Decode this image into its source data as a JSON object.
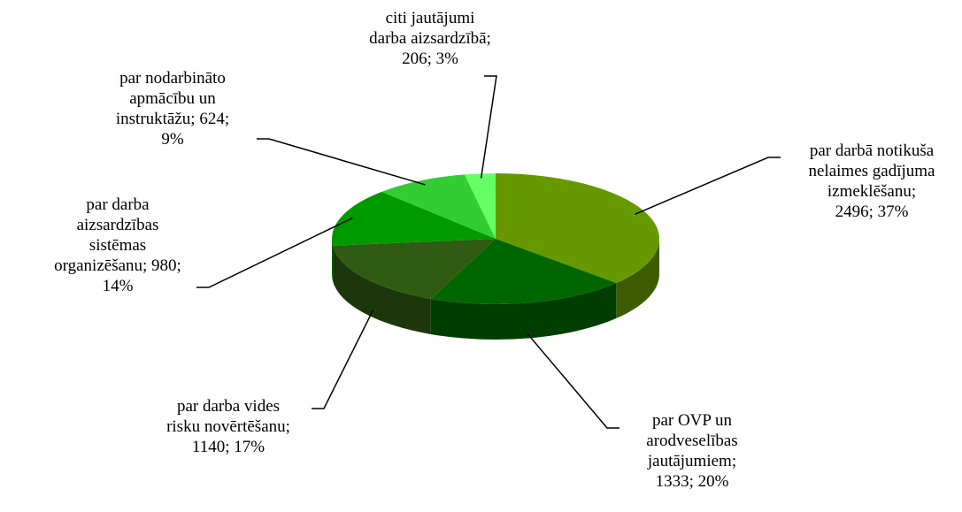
{
  "chart_data": {
    "type": "pie",
    "categories": [
      "par darbā notikuša nelaimes gadījuma izmeklēšanu",
      "par OVP un arodveselības jautājumiem",
      "par darba vides risku novērtēšanu",
      "par darba aizsardzības sistēmas organizēšanu",
      "par nodarbināto apmācību un instruktāžu",
      "citi jautājumi darba aizsardzībā"
    ],
    "values": [
      2496,
      1333,
      1140,
      980,
      624,
      206
    ],
    "percentages": [
      37,
      20,
      17,
      14,
      9,
      3
    ],
    "labels": [
      [
        "par darbā notikuša",
        "nelaimes gadījuma",
        "izmeklēšanu;",
        "2496; 37%"
      ],
      [
        "par OVP un",
        "arodveselības",
        "jautājumiem;",
        "1333; 20%"
      ],
      [
        "par darba vides",
        "risku novērtēšanu;",
        "1140; 17%"
      ],
      [
        "par darba",
        "aizsardzības",
        "sistēmas",
        "organizēšanu; 980;",
        "14%"
      ],
      [
        "par nodarbināto",
        "apmācību un",
        "instruktāžu; 624;",
        "9%"
      ],
      [
        "citi jautājumi",
        "darba aizsardzībā;",
        "206; 3%"
      ]
    ],
    "colors": [
      "#669900",
      "#006600",
      "#2f5c12",
      "#009900",
      "#33cc33",
      "#66ff66"
    ]
  }
}
